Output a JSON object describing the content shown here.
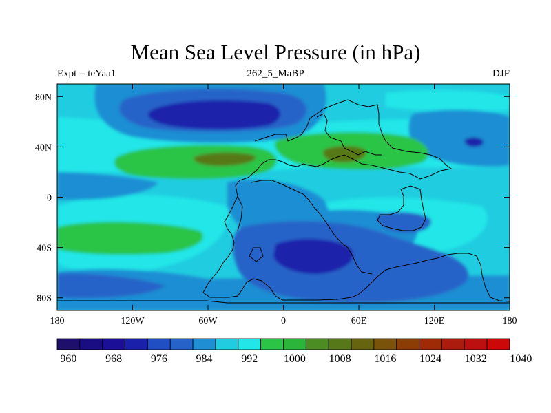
{
  "title": "Mean Sea Level Pressure (in hPa)",
  "subtitle_left": "Expt = teYaa1",
  "subtitle_center": "262_5_MaBP",
  "subtitle_right": "DJF",
  "map": {
    "projection": "cylindrical-equidistant",
    "lon_range": [
      -180,
      180
    ],
    "lat_range": [
      -90,
      90
    ],
    "x_ticks": [
      {
        "lon": -180,
        "label": "180"
      },
      {
        "lon": -120,
        "label": "120W"
      },
      {
        "lon": -60,
        "label": "60W"
      },
      {
        "lon": 0,
        "label": "0"
      },
      {
        "lon": 60,
        "label": "60E"
      },
      {
        "lon": 120,
        "label": "120E"
      },
      {
        "lon": 180,
        "label": "180"
      }
    ],
    "y_ticks": [
      {
        "lat": 80,
        "label": "80N"
      },
      {
        "lat": 40,
        "label": "40N"
      },
      {
        "lat": 0,
        "label": "0"
      },
      {
        "lat": -40,
        "label": "40S"
      },
      {
        "lat": -80,
        "label": "80S"
      }
    ]
  },
  "colorbar": {
    "colors": [
      "#1d0f6b",
      "#1a0c82",
      "#1a0f96",
      "#1a20aa",
      "#1f4fc2",
      "#2563c8",
      "#1f8ed3",
      "#20cde0",
      "#22e6e8",
      "#2cc446",
      "#2bb539",
      "#4b8d22",
      "#567818",
      "#66640f",
      "#7a5209",
      "#8c3d06",
      "#9e2b06",
      "#ab1c0c",
      "#bc0f0f",
      "#cc0808"
    ],
    "labels": [
      {
        "index": 1,
        "label": "960"
      },
      {
        "index": 3,
        "label": "968"
      },
      {
        "index": 5,
        "label": "976"
      },
      {
        "index": 7,
        "label": "984"
      },
      {
        "index": 9,
        "label": "992"
      },
      {
        "index": 11,
        "label": "1000"
      },
      {
        "index": 13,
        "label": "1008"
      },
      {
        "index": 15,
        "label": "1016"
      },
      {
        "index": 17,
        "label": "1024"
      },
      {
        "index": 19,
        "label": "1032"
      },
      {
        "index": 21,
        "label": "1040"
      }
    ]
  }
}
